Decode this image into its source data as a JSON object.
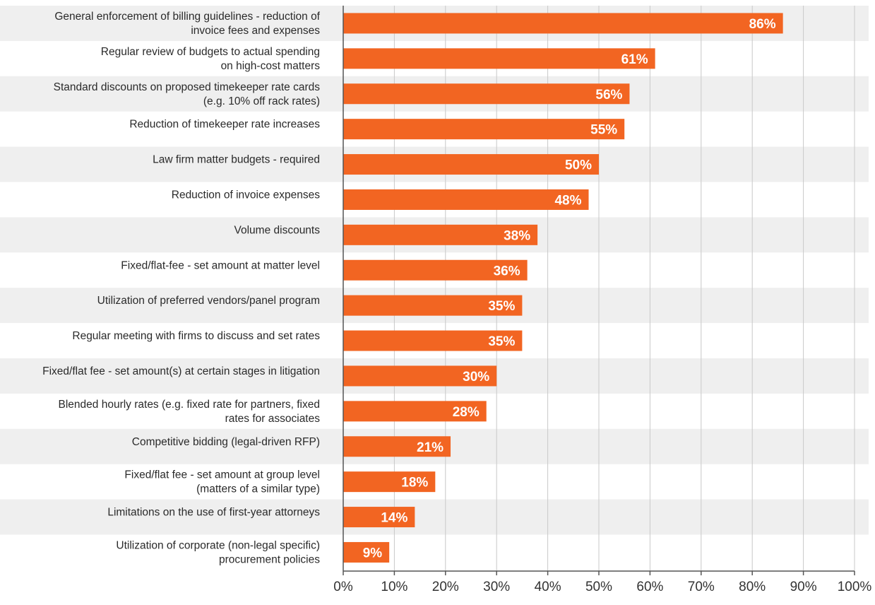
{
  "chart_data": {
    "type": "bar",
    "orientation": "horizontal",
    "title": "",
    "xlabel": "",
    "ylabel": "",
    "xlim": [
      0,
      100
    ],
    "grid": true,
    "bar_color": "#f26522",
    "stripe_color": "#efefef",
    "categories": [
      [
        "General enforcement of billing guidelines - reduction of",
        "invoice fees and expenses"
      ],
      [
        "Regular review of budgets to actual spending",
        "on high-cost matters"
      ],
      [
        "Standard discounts on proposed timekeeper rate cards",
        "(e.g. 10% off rack rates)"
      ],
      [
        "Reduction of timekeeper rate increases"
      ],
      [
        "Law firm matter budgets - required"
      ],
      [
        "Reduction of invoice expenses"
      ],
      [
        "Volume discounts"
      ],
      [
        "Fixed/flat-fee - set amount at matter level"
      ],
      [
        "Utilization of preferred vendors/panel program"
      ],
      [
        "Regular meeting with firms to discuss and set rates"
      ],
      [
        "Fixed/flat fee - set amount(s) at certain stages in litigation"
      ],
      [
        "Blended hourly rates (e.g. fixed rate for partners, fixed",
        "rates for associates"
      ],
      [
        "Competitive bidding (legal-driven RFP)"
      ],
      [
        "Fixed/flat fee - set amount at group level",
        "(matters of a similar type)"
      ],
      [
        "Limitations on the use of first-year attorneys"
      ],
      [
        "Utilization of corporate (non-legal specific)",
        "procurement policies"
      ]
    ],
    "values": [
      86,
      61,
      56,
      55,
      50,
      48,
      38,
      36,
      35,
      35,
      30,
      28,
      21,
      18,
      14,
      9
    ],
    "value_labels": [
      "86%",
      "61%",
      "56%",
      "55%",
      "50%",
      "48%",
      "38%",
      "36%",
      "35%",
      "35%",
      "30%",
      "28%",
      "21%",
      "18%",
      "14%",
      "9%"
    ],
    "ticks": [
      0,
      10,
      20,
      30,
      40,
      50,
      60,
      70,
      80,
      90,
      100
    ],
    "tick_labels": [
      "0%",
      "10%",
      "20%",
      "30%",
      "40%",
      "50%",
      "60%",
      "70%",
      "80%",
      "90%",
      "100%"
    ]
  }
}
